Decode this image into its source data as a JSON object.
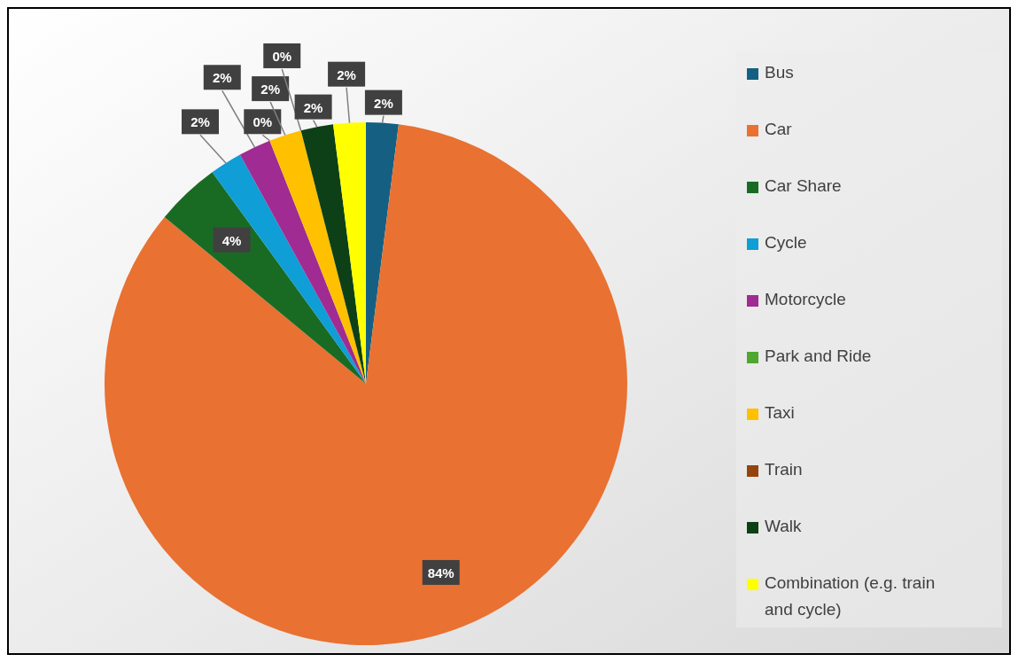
{
  "chart_data": {
    "type": "pie",
    "categories": [
      "Bus",
      "Car",
      "Car Share",
      "Cycle",
      "Motorcycle",
      "Park and Ride",
      "Taxi",
      "Train",
      "Walk",
      "Combination (e.g. train and cycle)"
    ],
    "values": [
      2,
      84,
      4,
      2,
      2,
      0,
      2,
      0,
      2,
      2
    ],
    "colors": [
      "#156082",
      "#e97132",
      "#196b24",
      "#0f9ed5",
      "#a02b93",
      "#4ea72e",
      "#ffc000",
      "#96440f",
      "#0e4017",
      "#ffff00"
    ],
    "value_labels": [
      "2%",
      "84%",
      "4%",
      "2%",
      "2%",
      "0%",
      "2%",
      "0%",
      "2%",
      "2%"
    ],
    "legend": "right"
  }
}
